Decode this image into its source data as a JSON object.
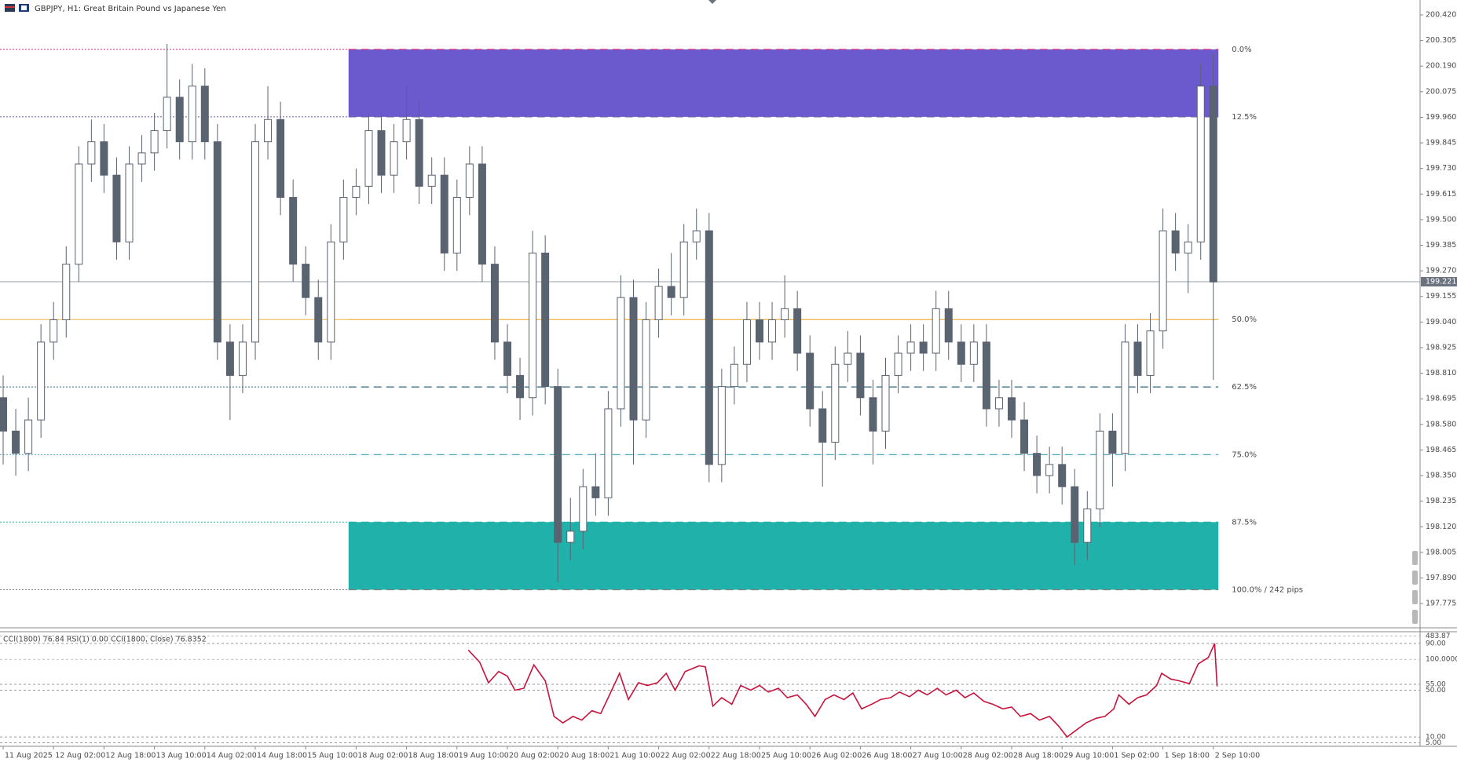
{
  "header": {
    "title": "GBPJPY, H1:  Great Britain Pound vs Japanese Yen"
  },
  "chart_data": [
    {
      "type": "candlestick",
      "xlim": [
        -0.25,
        112.4
      ],
      "ylim": [
        197.666,
        200.487
      ],
      "colors": {
        "wick": "#5a6370",
        "up": "#ffffff",
        "down": "#5a6370",
        "price_line": "#9aa0a6",
        "price_box": "#6b7280"
      },
      "current_price": 199.221,
      "yticks": [
        {
          "value": 200.42,
          "label": "200.420"
        },
        200.305,
        {
          "value": 200.19,
          "label": "200.190"
        },
        200.075,
        {
          "value": 199.96,
          "label": "199.960"
        },
        199.845,
        {
          "value": 199.73,
          "label": "199.730"
        },
        199.615,
        {
          "value": 199.5,
          "label": "199.500"
        },
        199.385,
        {
          "value": 199.27,
          "label": "199.270"
        },
        199.155,
        {
          "value": 199.04,
          "label": "199.040"
        },
        198.925,
        {
          "value": 198.81,
          "label": "198.810"
        },
        198.695,
        {
          "value": 198.58,
          "label": "198.580"
        },
        198.465,
        {
          "value": 198.35,
          "label": "198.350"
        },
        198.235,
        {
          "value": 198.12,
          "label": "198.120"
        },
        198.005,
        {
          "value": 197.89,
          "label": "197.890"
        },
        197.775
      ],
      "xticks": [
        {
          "value": 0,
          "label": "11 Aug 2025"
        },
        {
          "value": 4,
          "label": "12 Aug 02:00"
        },
        {
          "value": 8,
          "label": "12 Aug 18:00"
        },
        {
          "value": 12,
          "label": "13 Aug 10:00"
        },
        {
          "value": 16,
          "label": "14 Aug 02:00"
        },
        {
          "value": 20,
          "label": "14 Aug 18:00"
        },
        {
          "value": 24,
          "label": "15 Aug 10:00"
        },
        {
          "value": 28,
          "label": "18 Aug 02:00"
        },
        {
          "value": 32,
          "label": "18 Aug 18:00"
        },
        {
          "value": 36,
          "label": "19 Aug 10:00"
        },
        {
          "value": 40,
          "label": "20 Aug 02:00"
        },
        {
          "value": 44,
          "label": "20 Aug 18:00"
        },
        {
          "value": 48,
          "label": "21 Aug 10:00"
        },
        {
          "value": 52,
          "label": "22 Aug 02:00"
        },
        {
          "value": 56,
          "label": "22 Aug 18:00"
        },
        {
          "value": 60,
          "label": "25 Aug 10:00"
        },
        {
          "value": 64,
          "label": "26 Aug 02:00"
        },
        {
          "value": 68,
          "label": "26 Aug 18:00"
        },
        {
          "value": 72,
          "label": "27 Aug 10:00"
        },
        {
          "value": 76,
          "label": "28 Aug 02:00"
        },
        {
          "value": 80,
          "label": "28 Aug 18:00"
        },
        {
          "value": 84,
          "label": "29 Aug 10:00"
        },
        {
          "value": 88,
          "label": "1 Sep 02:00"
        },
        {
          "value": 92,
          "label": "1 Sep 18:00"
        },
        {
          "value": 96,
          "label": "2 Sep 10:00"
        }
      ],
      "fib": {
        "x_start": 27.4,
        "x_end": 96.4,
        "levels": [
          {
            "label": "0.0%",
            "value": 200.265,
            "color": "#e0207f",
            "style": "dashed"
          },
          {
            "label": "12.5%",
            "value": 199.962,
            "color": "#6a62b0",
            "style": "dashed"
          },
          {
            "label": "50.0%",
            "value": 199.051,
            "color": "#f0b040",
            "style": "solid"
          },
          {
            "label": "62.5%",
            "value": 198.748,
            "color": "#2f6f7f",
            "style": "dashed"
          },
          {
            "label": "75.0%",
            "value": 198.444,
            "color": "#4aa8c0",
            "style": "dashed"
          },
          {
            "label": "87.5%",
            "value": 198.141,
            "color": "#20b2aa",
            "style": "dashed"
          },
          {
            "label": "100.0% / 242 pips",
            "value": 197.837,
            "color": "#808080",
            "style": "dashed"
          }
        ],
        "zones": [
          {
            "top": 200.265,
            "bottom": 199.962,
            "color": "#6a5acd"
          },
          {
            "top": 198.141,
            "bottom": 197.837,
            "color": "#20b2aa"
          }
        ]
      },
      "candles": [
        [
          198.7,
          198.8,
          198.4,
          198.55
        ],
        [
          198.55,
          198.65,
          198.35,
          198.45
        ],
        [
          198.45,
          198.7,
          198.37,
          198.6
        ],
        [
          198.6,
          199.03,
          198.52,
          198.95
        ],
        [
          198.95,
          199.13,
          198.87,
          199.05
        ],
        [
          199.05,
          199.38,
          198.97,
          199.3
        ],
        [
          199.3,
          199.83,
          199.22,
          199.75
        ],
        [
          199.75,
          199.95,
          199.67,
          199.85
        ],
        [
          199.85,
          199.93,
          199.62,
          199.7
        ],
        [
          199.7,
          199.78,
          199.32,
          199.4
        ],
        [
          199.4,
          199.83,
          199.32,
          199.75
        ],
        [
          199.75,
          199.88,
          199.67,
          199.8
        ],
        [
          199.8,
          199.98,
          199.72,
          199.9
        ],
        [
          199.9,
          200.29,
          199.82,
          200.05
        ],
        [
          200.05,
          200.13,
          199.77,
          199.85
        ],
        [
          199.85,
          200.2,
          199.77,
          200.1
        ],
        [
          200.1,
          200.18,
          199.77,
          199.85
        ],
        [
          199.85,
          199.93,
          198.87,
          198.95
        ],
        [
          198.95,
          199.03,
          198.6,
          198.8
        ],
        [
          198.8,
          199.03,
          198.72,
          198.95
        ],
        [
          198.95,
          199.93,
          198.87,
          199.85
        ],
        [
          199.85,
          200.1,
          199.77,
          199.95
        ],
        [
          199.95,
          200.03,
          199.52,
          199.6
        ],
        [
          199.6,
          199.68,
          199.22,
          199.3
        ],
        [
          199.3,
          199.38,
          199.07,
          199.15
        ],
        [
          199.15,
          199.23,
          198.87,
          198.95
        ],
        [
          198.95,
          199.48,
          198.87,
          199.4
        ],
        [
          199.4,
          199.68,
          199.32,
          199.6
        ],
        [
          199.6,
          199.73,
          199.52,
          199.65
        ],
        [
          199.65,
          199.98,
          199.57,
          199.9
        ],
        [
          199.9,
          199.98,
          199.62,
          199.7
        ],
        [
          199.7,
          199.93,
          199.62,
          199.85
        ],
        [
          199.85,
          200.1,
          199.77,
          199.95
        ],
        [
          199.95,
          200.03,
          199.57,
          199.65
        ],
        [
          199.65,
          199.78,
          199.57,
          199.7
        ],
        [
          199.7,
          199.78,
          199.27,
          199.35
        ],
        [
          199.35,
          199.68,
          199.27,
          199.6
        ],
        [
          199.6,
          199.83,
          199.52,
          199.75
        ],
        [
          199.75,
          199.83,
          199.22,
          199.3
        ],
        [
          199.3,
          199.38,
          198.87,
          198.95
        ],
        [
          198.95,
          199.03,
          198.72,
          198.8
        ],
        [
          198.8,
          198.88,
          198.6,
          198.7
        ],
        [
          198.7,
          199.45,
          198.62,
          199.35
        ],
        [
          199.35,
          199.43,
          198.67,
          198.75
        ],
        [
          198.75,
          198.83,
          197.87,
          198.05
        ],
        [
          198.05,
          198.25,
          197.97,
          198.1
        ],
        [
          198.1,
          198.38,
          198.02,
          198.3
        ],
        [
          198.3,
          198.45,
          198.17,
          198.25
        ],
        [
          198.25,
          198.73,
          198.17,
          198.65
        ],
        [
          198.65,
          199.25,
          198.57,
          199.15
        ],
        [
          199.15,
          199.23,
          198.4,
          198.6
        ],
        [
          198.6,
          199.13,
          198.52,
          199.05
        ],
        [
          199.05,
          199.28,
          198.97,
          199.2
        ],
        [
          199.2,
          199.35,
          199.07,
          199.15
        ],
        [
          199.15,
          199.48,
          199.07,
          199.4
        ],
        [
          199.4,
          199.55,
          199.32,
          199.45
        ],
        [
          199.45,
          199.53,
          198.32,
          198.4
        ],
        [
          198.4,
          198.83,
          198.32,
          198.75
        ],
        [
          198.75,
          198.93,
          198.67,
          198.85
        ],
        [
          198.85,
          199.13,
          198.77,
          199.05
        ],
        [
          199.05,
          199.13,
          198.87,
          198.95
        ],
        [
          198.95,
          199.13,
          198.87,
          199.05
        ],
        [
          199.05,
          199.25,
          198.97,
          199.1
        ],
        [
          199.1,
          199.18,
          198.82,
          198.9
        ],
        [
          198.9,
          198.98,
          198.57,
          198.65
        ],
        [
          198.65,
          198.73,
          198.3,
          198.5
        ],
        [
          198.5,
          198.93,
          198.42,
          198.85
        ],
        [
          198.85,
          199.0,
          198.77,
          198.9
        ],
        [
          198.9,
          198.98,
          198.62,
          198.7
        ],
        [
          198.7,
          198.78,
          198.4,
          198.55
        ],
        [
          198.55,
          198.88,
          198.47,
          198.8
        ],
        [
          198.8,
          198.98,
          198.72,
          198.9
        ],
        [
          198.9,
          199.03,
          198.82,
          198.95
        ],
        [
          198.95,
          199.03,
          198.82,
          198.9
        ],
        [
          198.9,
          199.18,
          198.82,
          199.1
        ],
        [
          199.1,
          199.18,
          198.87,
          198.95
        ],
        [
          198.95,
          199.03,
          198.77,
          198.85
        ],
        [
          198.85,
          199.03,
          198.77,
          198.95
        ],
        [
          198.95,
          199.03,
          198.57,
          198.65
        ],
        [
          198.65,
          198.78,
          198.57,
          198.7
        ],
        [
          198.7,
          198.78,
          198.52,
          198.6
        ],
        [
          198.6,
          198.68,
          198.37,
          198.45
        ],
        [
          198.45,
          198.53,
          198.27,
          198.35
        ],
        [
          198.35,
          198.48,
          198.27,
          198.4
        ],
        [
          198.4,
          198.48,
          198.22,
          198.3
        ],
        [
          198.3,
          198.38,
          197.95,
          198.05
        ],
        [
          198.05,
          198.28,
          197.97,
          198.2
        ],
        [
          198.2,
          198.63,
          198.12,
          198.55
        ],
        [
          198.55,
          198.63,
          198.3,
          198.45
        ],
        [
          198.45,
          199.03,
          198.37,
          198.95
        ],
        [
          198.95,
          199.03,
          198.72,
          198.8
        ],
        [
          198.8,
          199.08,
          198.72,
          199.0
        ],
        [
          199.0,
          199.55,
          198.92,
          199.45
        ],
        [
          199.45,
          199.53,
          199.27,
          199.35
        ],
        [
          199.35,
          199.48,
          199.17,
          199.4
        ],
        [
          199.4,
          200.2,
          199.32,
          200.1
        ],
        [
          200.1,
          200.25,
          198.78,
          199.22
        ]
      ]
    },
    {
      "type": "line",
      "title": "CCI(1800) 76.84 RSI(1) 0.00 CCI(1800, Close) 76.8352",
      "color": "#c8143c",
      "xlim": [
        -0.25,
        112.4
      ],
      "ylim": [
        2,
        98
      ],
      "yticks": [
        {
          "value": 90,
          "label": "90.00"
        },
        {
          "value": 55,
          "label": "55.00"
        },
        {
          "value": 50,
          "label": "50.00"
        },
        {
          "value": 10,
          "label": "10.00"
        },
        {
          "value": 5,
          "label": "5.00"
        }
      ],
      "y2lim": [
        -1328,
        515
      ],
      "y2ticks": [
        483.87,
        {
          "value": 100,
          "label": "100.0000"
        }
      ],
      "x": [
        36.9,
        37.8,
        38.5,
        39.3,
        40.0,
        40.6,
        41.3,
        42.1,
        43.0,
        43.7,
        44.4,
        45.2,
        45.9,
        46.7,
        47.4,
        48.1,
        48.9,
        49.6,
        50.4,
        51.1,
        51.9,
        52.6,
        53.3,
        54.1,
        55.2,
        55.7,
        56.3,
        57.0,
        57.8,
        58.5,
        59.3,
        60.0,
        60.7,
        61.5,
        62.2,
        63.0,
        63.7,
        64.4,
        65.2,
        65.9,
        66.7,
        67.4,
        68.1,
        68.9,
        69.6,
        70.4,
        71.1,
        71.9,
        72.6,
        73.3,
        74.1,
        74.8,
        75.6,
        76.3,
        77.0,
        77.8,
        78.5,
        79.3,
        80.0,
        80.7,
        81.5,
        82.2,
        83.0,
        83.7,
        84.4,
        85.2,
        85.9,
        86.7,
        87.4,
        88.1,
        88.5,
        89.3,
        90.0,
        90.7,
        91.5,
        91.9,
        92.6,
        93.3,
        94.1,
        94.8,
        95.6,
        96.1,
        96.3
      ],
      "values": [
        84.4,
        74,
        56.4,
        66,
        62,
        50,
        51.6,
        71.6,
        58,
        27.6,
        22,
        27.6,
        24.4,
        32.4,
        30,
        46,
        64.4,
        42,
        56.4,
        54,
        56.4,
        64.4,
        50,
        66,
        70.8,
        70,
        36.4,
        43.6,
        38,
        54,
        50,
        54,
        48.4,
        51.6,
        43.6,
        46,
        38,
        27.6,
        42,
        46,
        42,
        47.6,
        34,
        38,
        42,
        43.6,
        48.4,
        44.4,
        50,
        46,
        51.6,
        46,
        50,
        43.6,
        47.6,
        40.4,
        38,
        34,
        35.6,
        27.6,
        30,
        24.4,
        27.6,
        19.6,
        10,
        16.4,
        22,
        26,
        27.6,
        34,
        46,
        38,
        43.6,
        46,
        54,
        64.4,
        59.6,
        58,
        55.6,
        72.4,
        78,
        90,
        53.2
      ]
    }
  ]
}
